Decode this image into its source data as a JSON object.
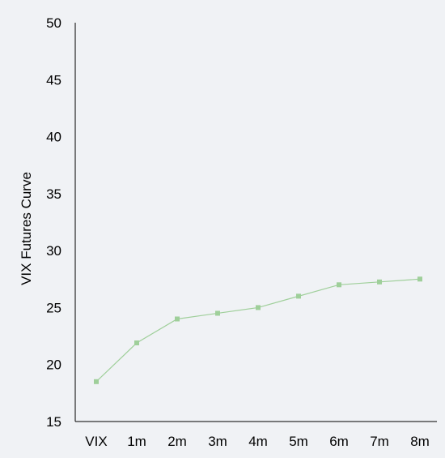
{
  "chart_data": {
    "type": "line",
    "title": "",
    "xlabel": "",
    "ylabel": "VIX Futures Curve",
    "categories": [
      "VIX",
      "1m",
      "2m",
      "3m",
      "4m",
      "5m",
      "6m",
      "7m",
      "8m"
    ],
    "series": [
      {
        "values": [
          18.5,
          21.9,
          24.0,
          24.5,
          25.0,
          26.0,
          27.0,
          27.25,
          27.5
        ]
      }
    ],
    "ylim": [
      15,
      50
    ],
    "yticks": [
      "15",
      "20",
      "25",
      "30",
      "35",
      "40",
      "45",
      "50"
    ],
    "grid": false,
    "legend": "none",
    "colors": {
      "background": "#f0f2f5",
      "line": "#9fcf9a",
      "marker": "#9fcf9a",
      "axis": "#000000"
    }
  }
}
